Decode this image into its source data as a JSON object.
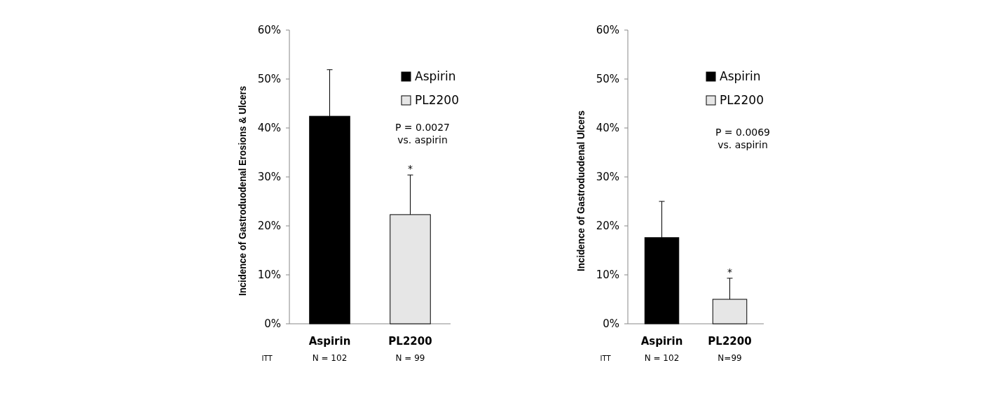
{
  "chart_data": [
    {
      "type": "bar",
      "ylabel": "Incidence of Gastroduodenal Erosions & Ulcers",
      "categories": [
        "Aspirin",
        "PL2200"
      ],
      "series": [
        {
          "name": "Aspirin",
          "color": "#000000",
          "values": [
            42.4,
            null
          ],
          "errors": [
            [
              42.4,
              51.9
            ],
            null
          ]
        },
        {
          "name": "PL2200",
          "color": "#e6e6e6",
          "values": [
            null,
            22.3
          ],
          "errors": [
            null,
            [
              22.3,
              30.4
            ]
          ]
        }
      ],
      "ylim": [
        0,
        60
      ],
      "yticks": [
        {
          "value": 0,
          "label": "0%"
        },
        {
          "value": 10,
          "label": "10%"
        },
        {
          "value": 20,
          "label": "20%"
        },
        {
          "value": 30,
          "label": "30%"
        },
        {
          "value": 40,
          "label": "40%"
        },
        {
          "value": 50,
          "label": "50%"
        },
        {
          "value": 60,
          "label": "60%"
        }
      ],
      "legend": "top right",
      "grid": false,
      "annotations": [
        "P = 0.0027",
        "vs. aspirin",
        "*",
        "ITT",
        "N = 102",
        "N = 99"
      ]
    },
    {
      "type": "bar",
      "ylabel": "Incidence of Gastroduodenal Ulcers",
      "categories": [
        "Aspirin",
        "PL2200"
      ],
      "series": [
        {
          "name": "Aspirin",
          "color": "#000000",
          "values": [
            17.6,
            null
          ],
          "errors": [
            [
              17.6,
              25.0
            ],
            null
          ]
        },
        {
          "name": "PL2200",
          "color": "#e6e6e6",
          "values": [
            null,
            5.0
          ],
          "errors": [
            null,
            [
              5.0,
              9.3
            ]
          ]
        }
      ],
      "ylim": [
        0,
        60
      ],
      "yticks": [
        {
          "value": 0,
          "label": "0%"
        },
        {
          "value": 10,
          "label": "10%"
        },
        {
          "value": 20,
          "label": "20%"
        },
        {
          "value": 30,
          "label": "30%"
        },
        {
          "value": 40,
          "label": "40%"
        },
        {
          "value": 50,
          "label": "50%"
        },
        {
          "value": 60,
          "label": "60%"
        }
      ],
      "legend": "top right",
      "grid": false,
      "annotations": [
        "P = 0.0069",
        "vs. aspirin",
        "*",
        "ITT",
        "N = 102",
        "N=99"
      ]
    }
  ]
}
